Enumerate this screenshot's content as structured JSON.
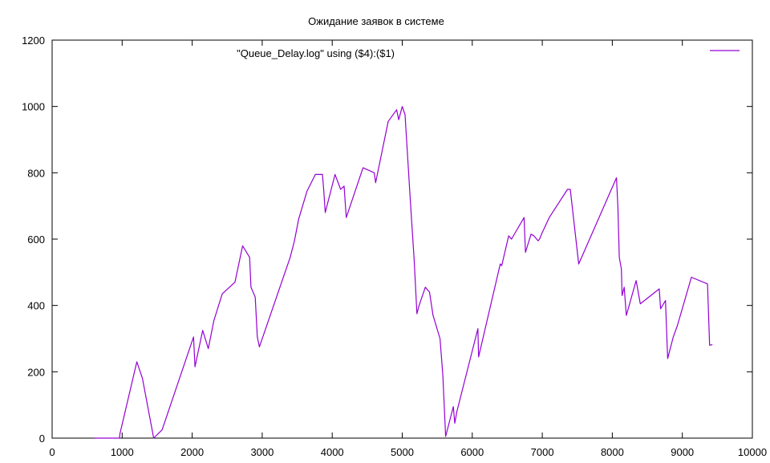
{
  "chart_data": {
    "type": "line",
    "title": "Ожидание заявок в системе",
    "xlabel": "",
    "ylabel": "",
    "xlim": [
      0,
      10000
    ],
    "ylim": [
      0,
      1200
    ],
    "grid": false,
    "legend_position": "top-right",
    "xticks": [
      0,
      1000,
      2000,
      3000,
      4000,
      5000,
      6000,
      7000,
      8000,
      9000,
      10000
    ],
    "yticks": [
      0,
      200,
      400,
      600,
      800,
      1000,
      1200
    ],
    "series": [
      {
        "name": "\"Queue_Delay.log\" using ($4):($1)",
        "color": "#9400d3",
        "x": [
          600,
          960,
          970,
          1210,
          1290,
          1450,
          1570,
          2020,
          2040,
          2150,
          2230,
          2310,
          2430,
          2610,
          2720,
          2820,
          2840,
          2900,
          2930,
          2960,
          3400,
          3460,
          3520,
          3640,
          3760,
          3860,
          3880,
          3900,
          4040,
          4120,
          4170,
          4200,
          4440,
          4600,
          4620,
          4800,
          4920,
          4950,
          5000,
          5040,
          5120,
          5170,
          5210,
          5240,
          5330,
          5390,
          5440,
          5540,
          5580,
          5620,
          5730,
          5750,
          5780,
          6080,
          6090,
          6400,
          6420,
          6520,
          6560,
          6740,
          6760,
          6840,
          6880,
          6940,
          6960,
          7000,
          7100,
          7360,
          7400,
          7520,
          8060,
          8080,
          8100,
          8130,
          8140,
          8170,
          8200,
          8340,
          8400,
          8670,
          8690,
          8760,
          8790,
          8870,
          8930,
          9130,
          9360,
          9390,
          9430
        ],
        "y": [
          0,
          0,
          15,
          230,
          180,
          0,
          25,
          305,
          215,
          325,
          270,
          355,
          435,
          470,
          580,
          545,
          455,
          425,
          305,
          275,
          545,
          595,
          660,
          745,
          795,
          795,
          745,
          680,
          795,
          750,
          760,
          665,
          815,
          800,
          770,
          955,
          990,
          960,
          1000,
          975,
          700,
          540,
          375,
          400,
          455,
          440,
          370,
          300,
          190,
          5,
          95,
          45,
          80,
          330,
          245,
          525,
          520,
          610,
          600,
          665,
          560,
          615,
          610,
          595,
          600,
          620,
          665,
          750,
          750,
          525,
          785,
          695,
          545,
          510,
          430,
          455,
          370,
          475,
          405,
          450,
          390,
          415,
          240,
          305,
          340,
          485,
          465,
          280,
          282
        ]
      }
    ]
  }
}
